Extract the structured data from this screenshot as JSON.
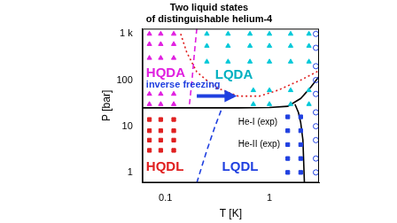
{
  "chart_data": {
    "type": "scatter",
    "title": [
      "Two liquid states",
      "of distinguishable helium-4"
    ],
    "x_label": "T [K]",
    "y_label": "P [bar]",
    "log": true,
    "grid": false,
    "xlim": [
      0.06,
      3
    ],
    "ylim": [
      0.6,
      1300
    ],
    "xticks": [
      0.1,
      1
    ],
    "yticks": [
      1,
      10,
      100,
      {
        "value": 1000,
        "label": "1 k"
      }
    ],
    "series": [
      {
        "type": "scatter",
        "color": "#e020e0",
        "marker": "triangle",
        "x": [
          0.07,
          0.09,
          0.12,
          0.07,
          0.09,
          0.12,
          0.07,
          0.09,
          0.12,
          0.07,
          0.09,
          0.12,
          0.07,
          0.09,
          0.12
        ],
        "y": [
          30,
          30,
          30,
          50,
          50,
          50,
          300,
          300,
          300,
          600,
          600,
          600,
          1000,
          1000,
          1000
        ]
      },
      {
        "type": "scatter",
        "color": "#00c8d8",
        "marker": "triangle",
        "x": [
          0.7,
          1.0,
          1.6,
          2.4,
          0.7,
          1.0,
          1.6,
          2.4,
          0.25,
          0.4,
          0.65,
          1.0,
          1.6,
          2.4,
          0.25,
          0.4,
          0.65,
          1.0,
          1.6,
          2.4,
          0.25,
          0.4,
          0.65,
          1.0,
          1.6,
          2.4
        ],
        "y": [
          30,
          30,
          30,
          30,
          60,
          60,
          60,
          60,
          250,
          250,
          250,
          250,
          250,
          250,
          550,
          550,
          550,
          550,
          550,
          550,
          1000,
          1000,
          1000,
          1000,
          1000,
          1000
        ]
      },
      {
        "type": "scatter",
        "color": "#e02020",
        "marker": "square",
        "x": [
          0.07,
          0.09,
          0.12,
          0.07,
          0.09,
          0.12,
          0.07,
          0.09,
          0.12,
          0.07,
          0.09,
          0.12
        ],
        "y": [
          3,
          3,
          3,
          5,
          5,
          5,
          8,
          8,
          8,
          14,
          14,
          14
        ]
      },
      {
        "type": "scatter",
        "color": "#2040e0",
        "marker": "square",
        "x": [
          1.5,
          2.0,
          1.5,
          2.0,
          1.5,
          2.0,
          1.5,
          2.0,
          1.5,
          2.0
        ],
        "y": [
          1,
          1,
          2,
          2,
          4,
          4,
          8,
          8,
          16,
          16
        ]
      },
      {
        "type": "scatter",
        "color": "#2040e0",
        "marker": "circle-open",
        "x": [
          2.8,
          2.8,
          2.8,
          2.8,
          2.8,
          2.8,
          2.8,
          2.8,
          2.8,
          2.8
        ],
        "y": [
          1,
          2,
          5,
          10,
          20,
          50,
          100,
          200,
          500,
          1000
        ]
      },
      {
        "type": "line",
        "color": "#e02020",
        "line_style": "dotted",
        "marker": "none",
        "x": [
          0.14,
          0.16,
          0.2,
          0.3,
          0.5,
          0.8,
          1.2,
          2,
          3
        ],
        "y": [
          1000,
          400,
          150,
          70,
          45,
          45,
          60,
          100,
          160
        ]
      },
      {
        "type": "line",
        "color": "#000000",
        "line_style": "solid",
        "marker": "none",
        "x": [
          0.06,
          0.5,
          1,
          1.5,
          2,
          2.5,
          3
        ],
        "y": [
          25,
          25,
          25.5,
          27,
          40,
          70,
          120
        ]
      },
      {
        "type": "line",
        "color": "#000000",
        "line_style": "solid",
        "marker": "none",
        "x": [
          2.17,
          2.1,
          2.0,
          1.9,
          1.76
        ],
        "y": [
          0.6,
          5,
          12,
          20,
          30
        ]
      },
      {
        "type": "line",
        "color": "#2040e0",
        "line_style": "dashed",
        "marker": "none",
        "x": [
          0.2,
          0.25,
          0.3,
          0.35
        ],
        "y": [
          0.6,
          3,
          10,
          25
        ]
      },
      {
        "type": "line",
        "color": "#e020e0",
        "line_style": "dashed",
        "marker": "none",
        "x": [
          0.17,
          0.18,
          0.19,
          0.2
        ],
        "y": [
          30,
          100,
          400,
          1300
        ]
      },
      {
        "type": "line",
        "color": "#2040e0",
        "line_style": "solid",
        "marker": "arrow",
        "x": [
          0.2,
          0.45
        ],
        "y": [
          45,
          45
        ]
      }
    ],
    "annotations": [
      {
        "text": "HQDA",
        "x": 0.065,
        "y": 140,
        "color": "#e020e0"
      },
      {
        "text": "LQDA",
        "x": 0.3,
        "y": 130,
        "color": "#00b0c0"
      },
      {
        "text": "HQDL",
        "x": 0.065,
        "y": 1.3,
        "color": "#e02020"
      },
      {
        "text": "LQDL",
        "x": 0.35,
        "y": 1.3,
        "color": "#2040e0"
      },
      {
        "text": "inverse freezing",
        "x": 0.065,
        "y": 78,
        "color": "#2040e0"
      },
      {
        "text": "He-I (exp)",
        "x": 0.5,
        "y": 12,
        "color": "#000000"
      },
      {
        "text": "He-II (exp)",
        "x": 0.5,
        "y": 4,
        "color": "#000000"
      }
    ]
  }
}
